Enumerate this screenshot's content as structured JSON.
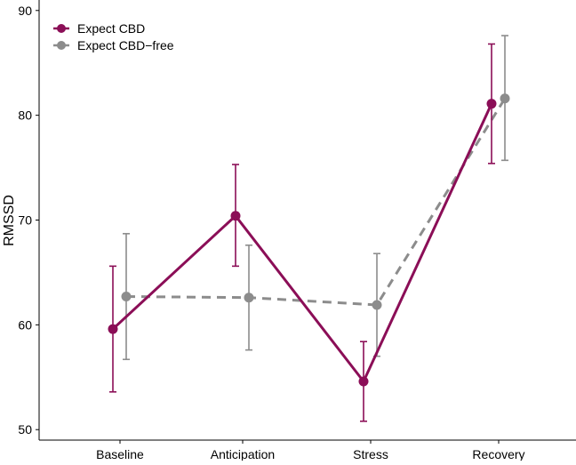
{
  "chart_data": {
    "type": "line",
    "title": "",
    "xlabel": "",
    "ylabel": "RMSSD",
    "categories": [
      "Baseline",
      "Anticipation",
      "Stress",
      "Recovery"
    ],
    "ylim": [
      49,
      91
    ],
    "yticks": [
      50,
      60,
      70,
      80,
      90
    ],
    "grid": false,
    "legend_position": "top-left",
    "series": [
      {
        "name": "Expect CBD",
        "color": "#8B0E57",
        "line_style": "solid",
        "values": [
          59.6,
          70.4,
          54.6,
          81.1
        ],
        "error_low": [
          53.6,
          65.6,
          50.8,
          75.4
        ],
        "error_high": [
          65.6,
          75.3,
          58.4,
          86.8
        ]
      },
      {
        "name": "Expect CBD−free",
        "color": "#8C8C8C",
        "line_style": "dashed",
        "values": [
          62.7,
          62.6,
          61.9,
          81.6
        ],
        "error_low": [
          56.7,
          57.6,
          57.0,
          75.7
        ],
        "error_high": [
          68.7,
          67.6,
          66.8,
          87.6
        ]
      }
    ]
  }
}
